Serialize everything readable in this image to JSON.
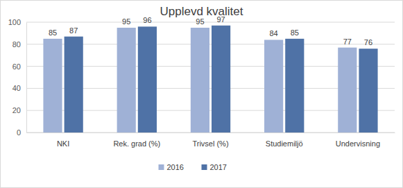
{
  "chart_data": {
    "type": "bar",
    "title": "Upplevd kvalitet",
    "categories": [
      "NKI",
      "Rek. grad (%)",
      "Trivsel (%)",
      "Studiemiljö",
      "Undervisning"
    ],
    "series": [
      {
        "name": "2016",
        "color": "#9fb1d6",
        "values": [
          85,
          95,
          95,
          84,
          77
        ]
      },
      {
        "name": "2017",
        "color": "#4f72a6",
        "values": [
          87,
          96,
          97,
          85,
          76
        ]
      }
    ],
    "ylim": [
      0,
      100
    ],
    "yticks": [
      0,
      20,
      40,
      60,
      80,
      100
    ],
    "grid": true,
    "legend": "bottom",
    "data_labels": true
  }
}
